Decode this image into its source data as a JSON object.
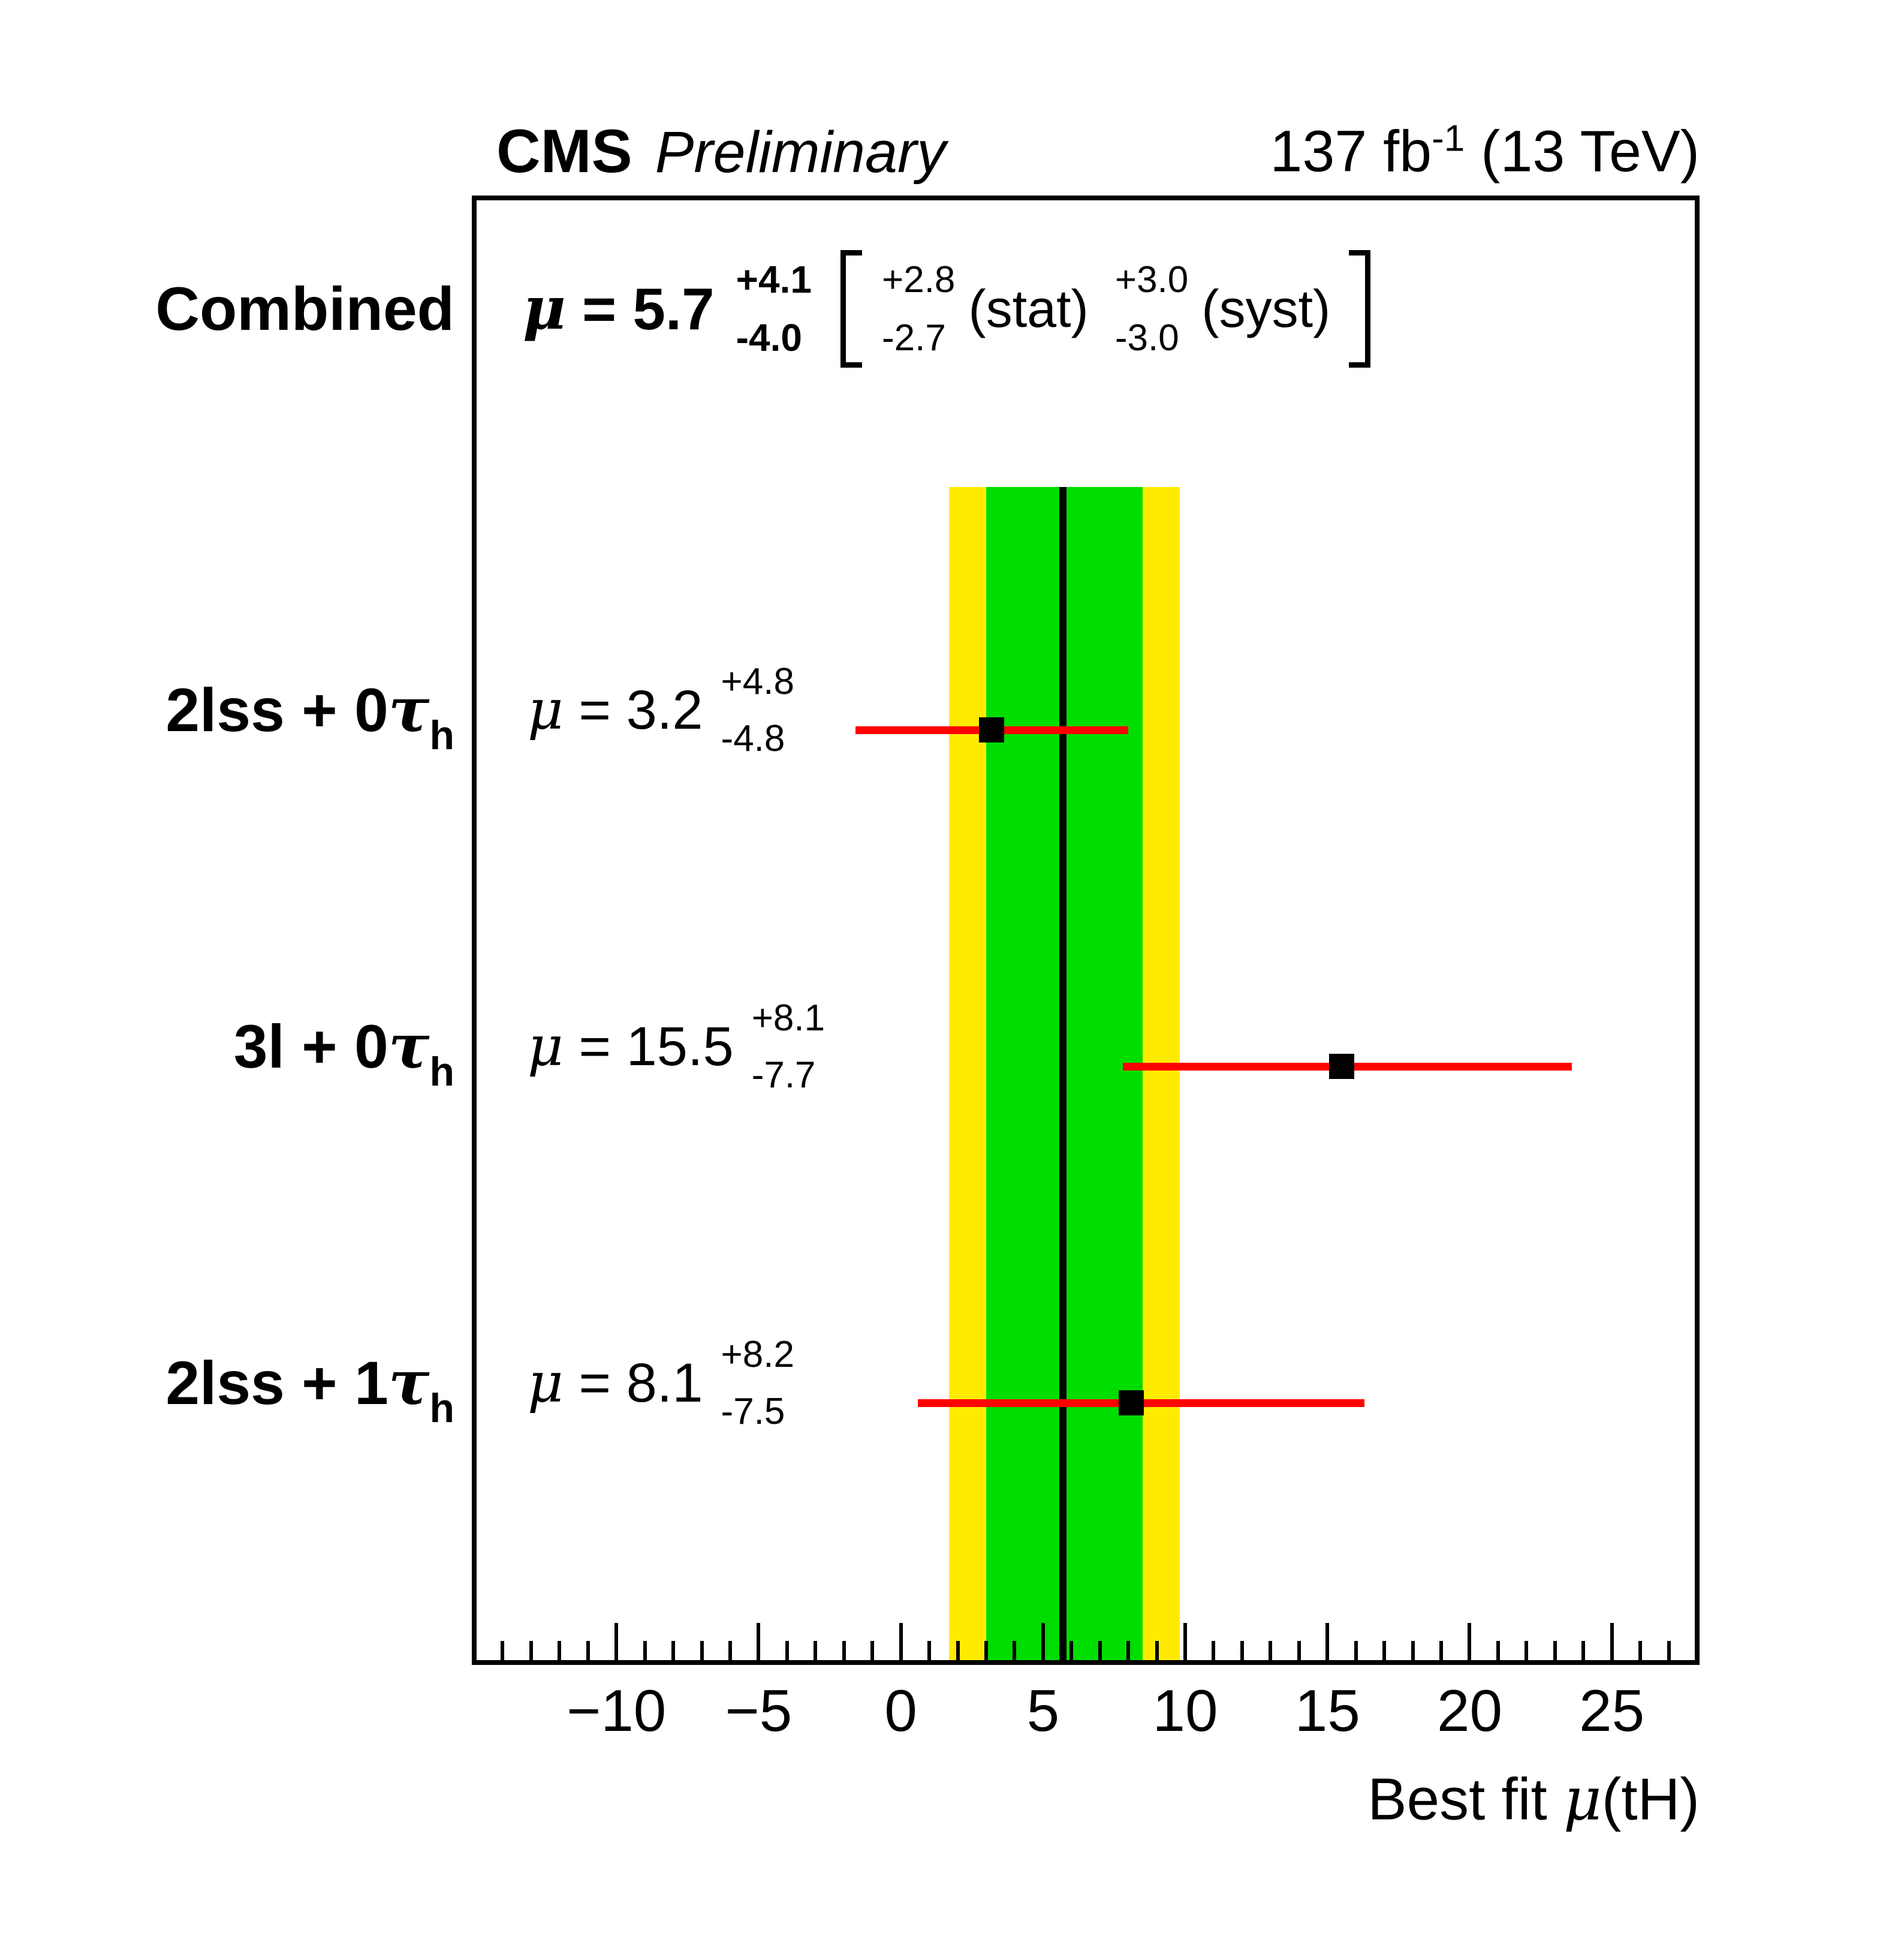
{
  "header": {
    "experiment": "CMS",
    "label": "Preliminary",
    "lumi_prefix": "137 fb",
    "lumi_sup": "-1",
    "lumi_suffix": " (13 TeV)"
  },
  "combined": {
    "label": "Combined",
    "mu": "μ",
    "eq_value": " = 5.7",
    "err_up": "+4.1",
    "err_dn": "-4.0",
    "stat_up": "+2.8",
    "stat_dn": "-2.7",
    "stat_label": "(stat)",
    "syst_up": "+3.0",
    "syst_dn": "-3.0",
    "syst_label": "(syst)"
  },
  "rows": [
    {
      "label_prefix": "2lss + 0",
      "tau": "τ",
      "tau_sub": "h",
      "mu": "μ",
      "eq_value": " = 3.2",
      "err_up": "+4.8",
      "err_dn": "-4.8"
    },
    {
      "label_prefix": "3l + 0",
      "tau": "τ",
      "tau_sub": "h",
      "mu": "μ",
      "eq_value": " = 15.5",
      "err_up": "+8.1",
      "err_dn": "-7.7"
    },
    {
      "label_prefix": "2lss + 1",
      "tau": "τ",
      "tau_sub": "h",
      "mu": "μ",
      "eq_value": " = 8.1",
      "err_up": "+8.2",
      "err_dn": "-7.5"
    }
  ],
  "axis": {
    "title_prefix": "Best fit ",
    "title_mu": "μ",
    "title_suffix": "(tH)"
  },
  "colors": {
    "band_2sigma_yellow": "#FFEB00",
    "band_1sigma_green": "#00DD00",
    "errorbar_red": "#FF0000",
    "bestfit_line": "#000000",
    "marker": "#000000"
  },
  "chart_data": {
    "type": "scatter",
    "title": "CMS Preliminary, 137 fb-1 (13 TeV)",
    "xlabel": "Best fit μ(tH)",
    "xlim": [
      -15,
      28
    ],
    "x_major_ticks": [
      -10,
      -5,
      0,
      5,
      10,
      15,
      20,
      25
    ],
    "x_major_labels": [
      "−10",
      "−5",
      "0",
      "5",
      "10",
      "15",
      "20",
      "25"
    ],
    "x_minor_step": 1,
    "grid": false,
    "categories": [
      "2lss + 0τh",
      "3l + 0τh",
      "2lss + 1τh"
    ],
    "points": [
      {
        "category": "2lss + 0τh",
        "mu": 3.2,
        "err_up": 4.8,
        "err_dn": 4.8
      },
      {
        "category": "3l + 0τh",
        "mu": 15.5,
        "err_up": 8.1,
        "err_dn": 7.7
      },
      {
        "category": "2lss + 1τh",
        "mu": 8.1,
        "err_up": 8.2,
        "err_dn": 7.5
      }
    ],
    "combined": {
      "value": 5.7,
      "err_up": 4.1,
      "err_dn": 4.0,
      "stat_up": 2.8,
      "stat_dn": 2.7,
      "syst_up": 3.0,
      "syst_dn": 3.0
    },
    "bands": {
      "green_1sigma": [
        3.0,
        8.5
      ],
      "yellow_2sigma": [
        1.7,
        9.8
      ],
      "bestfit_line": 5.7
    }
  }
}
